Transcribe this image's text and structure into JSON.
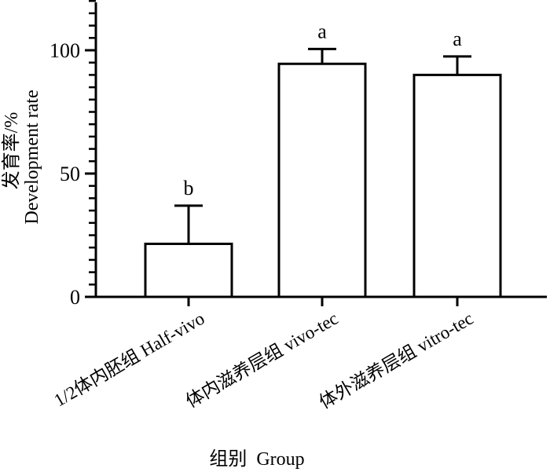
{
  "chart_data": {
    "type": "bar",
    "ylabel_cn": "发育率/%",
    "ylabel_en": "Development rate",
    "xlabel": "组别  Group",
    "ylim": [
      0,
      120
    ],
    "yticks": [
      0,
      50,
      100
    ],
    "categories": [
      "1/2体内胚组 Half-vivo",
      "体内滋养层组 vivo-tec",
      "体外滋养层组 vitro-tec"
    ],
    "values": [
      21.5,
      94.5,
      90
    ],
    "errors": [
      15.5,
      6,
      7.5
    ],
    "significance": [
      "b",
      "a",
      "a"
    ],
    "grid": false,
    "legend": "none"
  }
}
